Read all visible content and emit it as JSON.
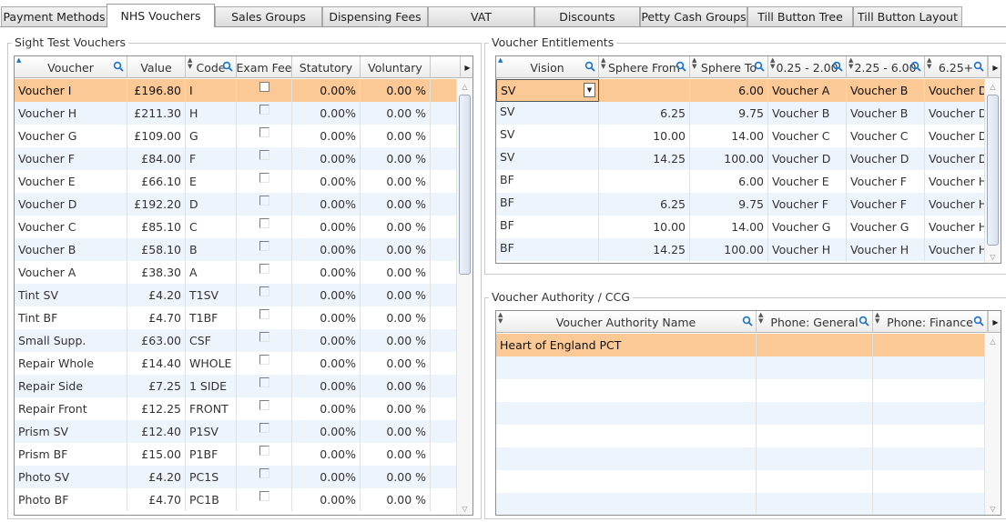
{
  "tabs": [
    {
      "label": "Payment Methods"
    },
    {
      "label": "NHS Vouchers"
    },
    {
      "label": "Sales Groups"
    },
    {
      "label": "Dispensing Fees"
    },
    {
      "label": "VAT"
    },
    {
      "label": "Discounts"
    },
    {
      "label": "Petty Cash Groups"
    },
    {
      "label": "Till Button Tree"
    },
    {
      "label": "Till Button Layout"
    }
  ],
  "active_tab": "NHS Vouchers",
  "sight_test": {
    "title": "Sight Test Vouchers",
    "columns": [
      "Voucher",
      "Value",
      "Code",
      "Exam Fee",
      "Statutory",
      "Voluntary"
    ],
    "rows": [
      {
        "voucher": "Voucher I",
        "value": "£196.80",
        "code": "I",
        "statutory": "0.00%",
        "voluntary": "0.00 %"
      },
      {
        "voucher": "Voucher H",
        "value": "£211.30",
        "code": "H",
        "statutory": "0.00%",
        "voluntary": "0.00 %"
      },
      {
        "voucher": "Voucher G",
        "value": "£109.00",
        "code": "G",
        "statutory": "0.00%",
        "voluntary": "0.00 %"
      },
      {
        "voucher": "Voucher F",
        "value": "£84.00",
        "code": "F",
        "statutory": "0.00%",
        "voluntary": "0.00 %"
      },
      {
        "voucher": "Voucher E",
        "value": "£66.10",
        "code": "E",
        "statutory": "0.00%",
        "voluntary": "0.00 %"
      },
      {
        "voucher": "Voucher D",
        "value": "£192.20",
        "code": "D",
        "statutory": "0.00%",
        "voluntary": "0.00 %"
      },
      {
        "voucher": "Voucher C",
        "value": "£85.10",
        "code": "C",
        "statutory": "0.00%",
        "voluntary": "0.00 %"
      },
      {
        "voucher": "Voucher B",
        "value": "£58.10",
        "code": "B",
        "statutory": "0.00%",
        "voluntary": "0.00 %"
      },
      {
        "voucher": "Voucher A",
        "value": "£38.30",
        "code": "A",
        "statutory": "0.00%",
        "voluntary": "0.00 %"
      },
      {
        "voucher": "Tint SV",
        "value": "£4.20",
        "code": "T1SV",
        "statutory": "0.00%",
        "voluntary": "0.00 %"
      },
      {
        "voucher": "Tint BF",
        "value": "£4.70",
        "code": "T1BF",
        "statutory": "0.00%",
        "voluntary": "0.00 %"
      },
      {
        "voucher": "Small Supp.",
        "value": "£63.00",
        "code": "CSF",
        "statutory": "0.00%",
        "voluntary": "0.00 %"
      },
      {
        "voucher": "Repair Whole",
        "value": "£14.40",
        "code": "WHOLE",
        "statutory": "0.00%",
        "voluntary": "0.00 %"
      },
      {
        "voucher": "Repair Side",
        "value": "£7.25",
        "code": "1 SIDE",
        "statutory": "0.00%",
        "voluntary": "0.00 %"
      },
      {
        "voucher": "Repair Front",
        "value": "£12.25",
        "code": "FRONT",
        "statutory": "0.00%",
        "voluntary": "0.00 %"
      },
      {
        "voucher": "Prism SV",
        "value": "£12.40",
        "code": "P1SV",
        "statutory": "0.00%",
        "voluntary": "0.00 %"
      },
      {
        "voucher": "Prism BF",
        "value": "£15.00",
        "code": "P1BF",
        "statutory": "0.00%",
        "voluntary": "0.00 %"
      },
      {
        "voucher": "Photo SV",
        "value": "£4.20",
        "code": "PC1S",
        "statutory": "0.00%",
        "voluntary": "0.00 %"
      },
      {
        "voucher": "Photo BF",
        "value": "£4.70",
        "code": "PC1B",
        "statutory": "0.00%",
        "voluntary": "0.00 %"
      }
    ]
  },
  "entitlements": {
    "title": "Voucher Entitlements",
    "columns": [
      "Vision",
      "Sphere From",
      "Sphere To",
      "0.25 - 2.00",
      "2.25 - 6.00",
      "6.25+"
    ],
    "rows": [
      {
        "vision": "SV",
        "from": "",
        "to": "6.00",
        "c1": "Voucher A",
        "c2": "Voucher B",
        "c3": "Voucher D"
      },
      {
        "vision": "SV",
        "from": "6.25",
        "to": "9.75",
        "c1": "Voucher B",
        "c2": "Voucher B",
        "c3": "Voucher D"
      },
      {
        "vision": "SV",
        "from": "10.00",
        "to": "14.00",
        "c1": "Voucher C",
        "c2": "Voucher C",
        "c3": "Voucher D"
      },
      {
        "vision": "SV",
        "from": "14.25",
        "to": "100.00",
        "c1": "Voucher D",
        "c2": "Voucher D",
        "c3": "Voucher D"
      },
      {
        "vision": "BF",
        "from": "",
        "to": "6.00",
        "c1": "Voucher E",
        "c2": "Voucher F",
        "c3": "Voucher H"
      },
      {
        "vision": "BF",
        "from": "6.25",
        "to": "9.75",
        "c1": "Voucher F",
        "c2": "Voucher F",
        "c3": "Voucher H"
      },
      {
        "vision": "BF",
        "from": "10.00",
        "to": "14.00",
        "c1": "Voucher G",
        "c2": "Voucher G",
        "c3": "Voucher H"
      },
      {
        "vision": "BF",
        "from": "14.25",
        "to": "100.00",
        "c1": "Voucher H",
        "c2": "Voucher H",
        "c3": "Voucher H"
      }
    ]
  },
  "authority": {
    "title": "Voucher Authority / CCG",
    "columns": [
      "Voucher Authority Name",
      "Phone: General",
      "Phone: Finance"
    ],
    "rows": [
      {
        "name": "Heart of England PCT",
        "general": "",
        "finance": ""
      }
    ]
  },
  "colors": {
    "selected_row": "#fbc996",
    "alt_row": "#eef4fb",
    "sort_arrow": "#1a73c8"
  },
  "icons": [
    "search-icon",
    "sort-arrow-icon",
    "more-columns-icon",
    "scroll-up-icon",
    "scroll-down-icon",
    "dropdown-icon"
  ]
}
